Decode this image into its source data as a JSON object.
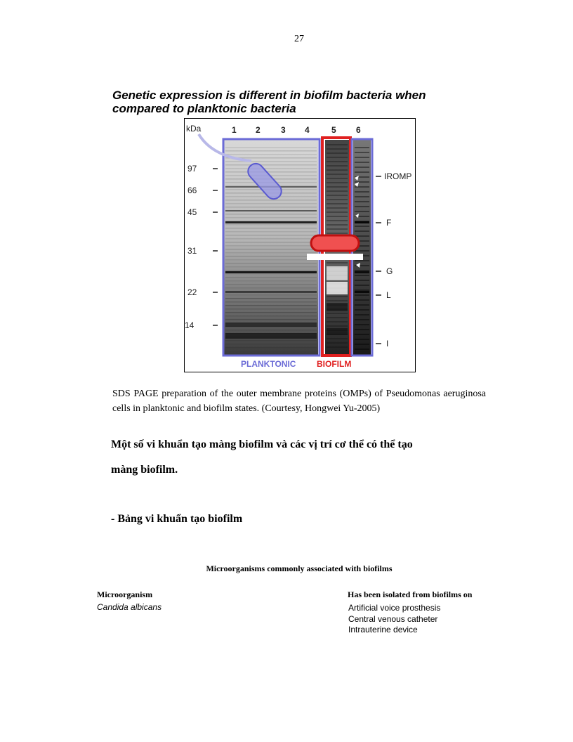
{
  "page_number": "27",
  "heading": "Genetic expression is different in biofilm bacteria when compared to planktonic bacteria",
  "figure": {
    "unit_label": "kDa",
    "lanes": [
      "1",
      "2",
      "3",
      "4",
      "5",
      "6"
    ],
    "markers_left": [
      "97",
      "66",
      "45",
      "31",
      "22",
      "14"
    ],
    "markers_right": [
      "IROMP",
      "F",
      "G",
      "L",
      "I"
    ],
    "group_labels": {
      "planktonic": "PLANKTONIC",
      "biofilm": "BIOFILM"
    },
    "colors": {
      "planktonic": "#6b6bd6",
      "biofilm": "#e02020"
    }
  },
  "caption": "SDS PAGE preparation of the outer membrane proteins (OMPs) of Pseudomonas aeruginosa cells in planktonic and biofilm states. (Courtesy, Hongwei Yu-2005)",
  "intro_line1": "Một số vi khuẩn tạo màng biofilm và các vị trí cơ thể có thể tạo",
  "intro_line2": "màng biofilm.",
  "table_label": "- Bảng vi khuẩn tạo biofilm",
  "table": {
    "title": "Microorganisms commonly associated with biofilms",
    "col_headers": [
      "Microorganism",
      "Has been isolated from biofilms on"
    ],
    "rows": [
      {
        "organism": "Candida albicans",
        "sites": [
          "Artificial voice prosthesis",
          "Central venous catheter",
          "Intrauterine device"
        ]
      }
    ]
  }
}
